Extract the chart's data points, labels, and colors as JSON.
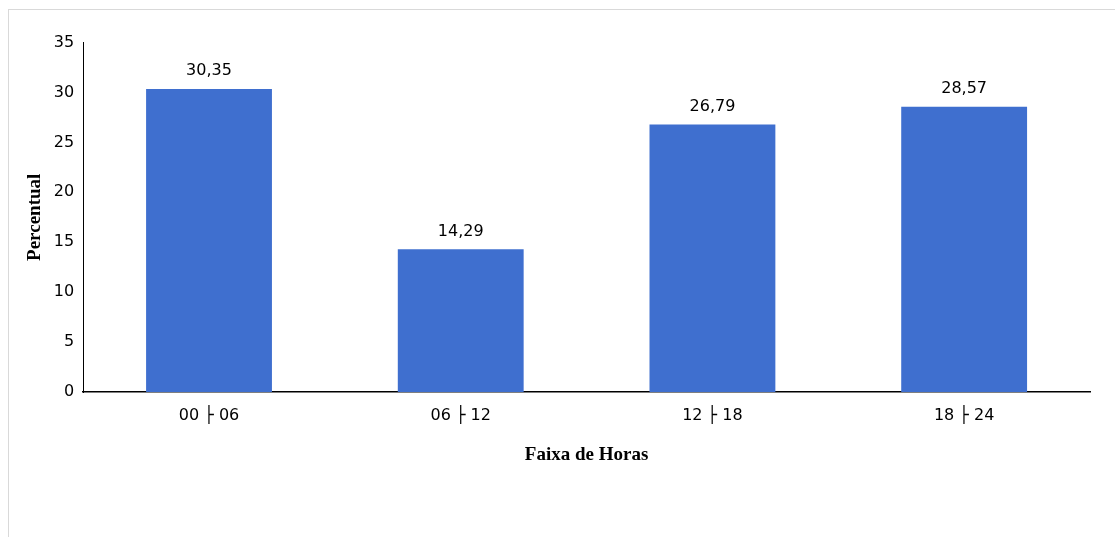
{
  "chart_data": {
    "type": "bar",
    "xlabel": "Faixa de Horas",
    "ylabel": "Percentual",
    "categories": [
      "00 ├ 06",
      "06 ├ 12",
      "12 ├ 18",
      "18 ├ 24"
    ],
    "values": [
      30.35,
      14.29,
      26.79,
      28.57
    ],
    "value_labels": [
      "30,35",
      "14,29",
      "26,79",
      "28,57"
    ],
    "color": "#3f6fcf",
    "ylim": [
      0,
      35
    ],
    "yticks": [
      0,
      5,
      10,
      15,
      20,
      25,
      30,
      35
    ],
    "grid": false,
    "legend": false
  }
}
